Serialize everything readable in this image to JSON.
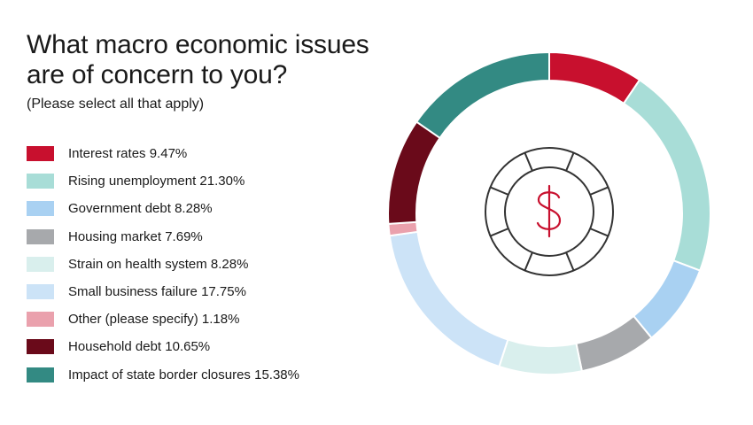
{
  "title": "What macro economic issues are of concern to you?",
  "subtitle": "(Please select all that apply)",
  "chart_data": {
    "type": "pie",
    "variant": "donut",
    "title": "What macro economic issues are of concern to you?",
    "subtitle": "(Please select all that apply)",
    "unit": "%",
    "center_icon": "dollar-coin-icon",
    "legend_position": "left",
    "slices": [
      {
        "label": "Interest rates",
        "value": 9.47,
        "value_label": "9.47%",
        "color": "#c8102e"
      },
      {
        "label": "Rising unemployment",
        "value": 21.3,
        "value_label": "21.30%",
        "color": "#a8ddd7"
      },
      {
        "label": "Government debt",
        "value": 8.28,
        "value_label": "8.28%",
        "color": "#a9d1f2"
      },
      {
        "label": "Housing market",
        "value": 7.69,
        "value_label": "7.69%",
        "color": "#a7a9ac"
      },
      {
        "label": "Strain on health system",
        "value": 8.28,
        "value_label": "8.28%",
        "color": "#d9efed"
      },
      {
        "label": "Small business failure",
        "value": 17.75,
        "value_label": "17.75%",
        "color": "#cce3f7"
      },
      {
        "label": "Other (please specify)",
        "value": 1.18,
        "value_label": "1.18%",
        "color": "#eaa1ad"
      },
      {
        "label": "Household debt",
        "value": 10.65,
        "value_label": "10.65%",
        "color": "#6a0a1a"
      },
      {
        "label": "Impact of state border closures",
        "value": 15.38,
        "value_label": "15.38%",
        "color": "#338a83"
      }
    ]
  }
}
